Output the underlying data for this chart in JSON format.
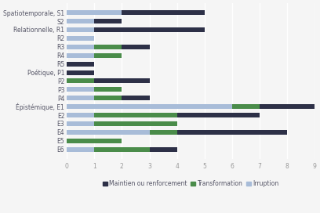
{
  "categories": [
    "Spatiotemporale, S1",
    "S2",
    "Relationnelle, R1",
    "R2",
    "R3",
    "R4",
    "R5",
    "Poétique, P1",
    "P2",
    "P3",
    "P4",
    "Épistémique, E1",
    "E2",
    "E3",
    "E4",
    "E5",
    "E6"
  ],
  "irruption": [
    2,
    1,
    1,
    1,
    1,
    1,
    0,
    0,
    0,
    1,
    1,
    6,
    1,
    1,
    3,
    0,
    1
  ],
  "transformation": [
    0,
    0,
    0,
    0,
    1,
    1,
    0,
    0,
    1,
    1,
    1,
    1,
    3,
    3,
    1,
    2,
    2
  ],
  "maintien": [
    3,
    1,
    4,
    0,
    1,
    0,
    1,
    1,
    2,
    0,
    1,
    2,
    3,
    0,
    4,
    0,
    1
  ],
  "color_irruption": "#a8bcd8",
  "color_transformation": "#4a8c4a",
  "color_maintien": "#2d3047",
  "xlim": [
    0,
    9
  ],
  "xticks": [
    0,
    1,
    2,
    3,
    4,
    5,
    6,
    7,
    8,
    9
  ],
  "legend_labels": [
    "Maintien ou renforcement",
    "Transformation",
    "Irruption"
  ],
  "bg_color": "#f5f5f5",
  "grid_color": "#ffffff",
  "bar_height": 0.55,
  "tick_fontsize": 5.5,
  "legend_fontsize": 5.5,
  "label_color": "#555566"
}
